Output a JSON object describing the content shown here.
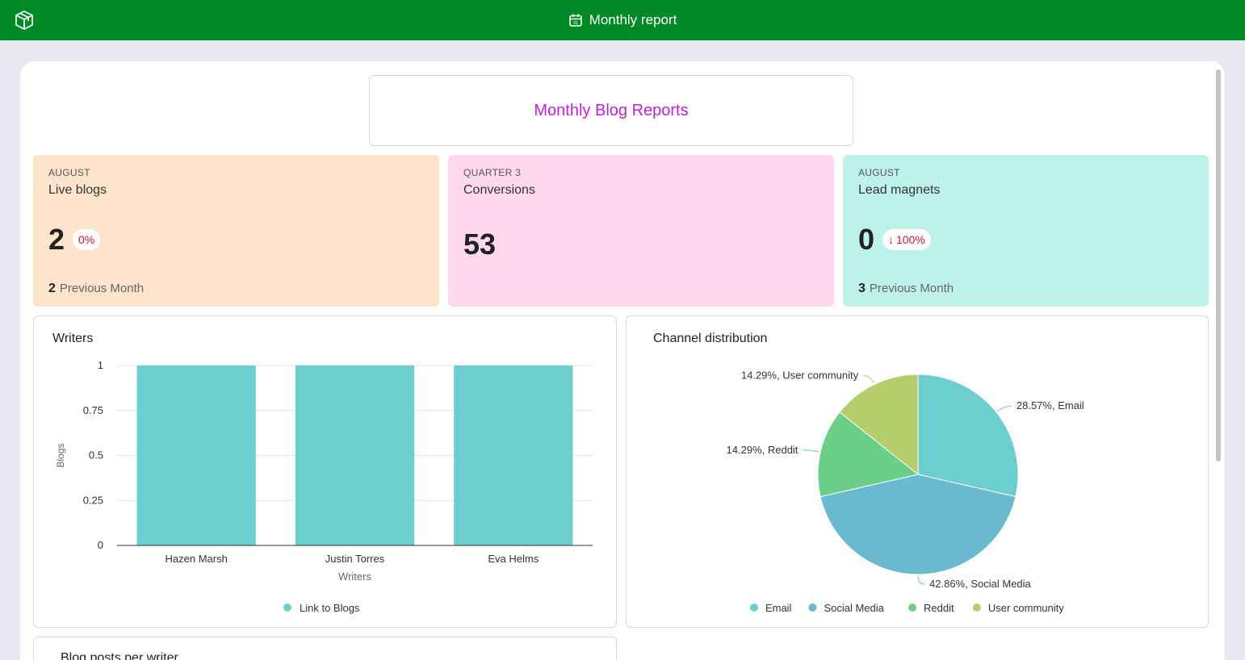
{
  "header": {
    "title": "Monthly report",
    "logo_icon": "cube-icon",
    "title_icon": "calendar-icon",
    "bg_color": "#008a26"
  },
  "report_title": "Monthly Blog Reports",
  "kpis": [
    {
      "kicker": "AUGUST",
      "label": "Live blogs",
      "value": "2",
      "delta": "0%",
      "prev_value": "2",
      "prev_label": "Previous Month",
      "bg": "#ffe4cc"
    },
    {
      "kicker": "QUARTER 3",
      "label": "Conversions",
      "value": "53",
      "bg": "#ffd8ee"
    },
    {
      "kicker": "AUGUST",
      "label": "Lead magnets",
      "value": "0",
      "delta_arrow": "↓",
      "delta": "100%",
      "prev_value": "3",
      "prev_label": "Previous Month",
      "bg": "#bdf2ea"
    }
  ],
  "writers_panel": {
    "title": "Writers"
  },
  "channel_panel": {
    "title": "Channel distribution"
  },
  "blog_panel": {
    "title": "Blog posts per writer"
  },
  "chart_data": [
    {
      "type": "bar",
      "categories": [
        "Hazen Marsh",
        "Justin Torres",
        "Eva Helms"
      ],
      "series": [
        {
          "name": "Link to Blogs",
          "values": [
            1,
            1,
            1
          ],
          "color": "#6ccece"
        }
      ],
      "xlabel": "Writers",
      "ylabel": "Blogs",
      "ylim": [
        0,
        1
      ],
      "yticks": [
        "0",
        "0.25",
        "0.5",
        "0.75",
        "1"
      ],
      "grid": true,
      "legend": "bottom"
    },
    {
      "type": "pie",
      "slices": [
        {
          "name": "Email",
          "value": 28.57,
          "label": "28.57%, Email",
          "color": "#6ccece"
        },
        {
          "name": "Social Media",
          "value": 42.86,
          "label": "42.86%, Social Media",
          "color": "#69bacf"
        },
        {
          "name": "Reddit",
          "value": 14.29,
          "label": "14.29%, Reddit",
          "color": "#6ccf88"
        },
        {
          "name": "User community",
          "value": 14.29,
          "label": "14.29%, User community",
          "color": "#b5cd6a"
        }
      ],
      "legend": "bottom"
    }
  ]
}
